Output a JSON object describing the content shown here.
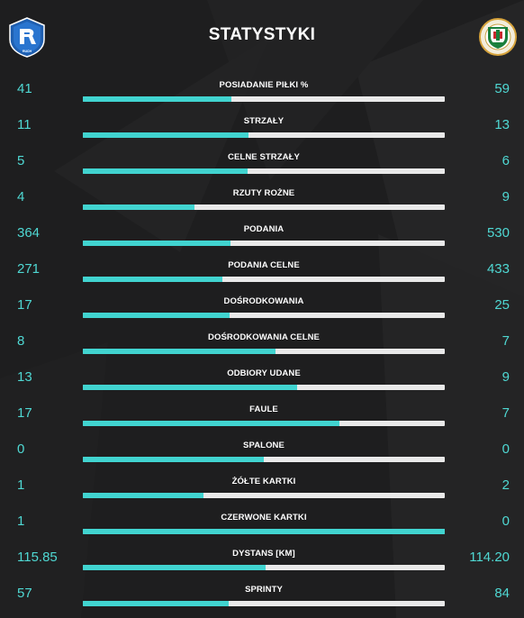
{
  "header": {
    "title": "STATYSTYKI",
    "home_crest_icon": "ruch-chorzow-crest-icon",
    "away_crest_icon": "zaglebie-lubin-crest-icon",
    "home_crest_text": "RUCH",
    "home_crest_subtext": "CHORZÓW"
  },
  "colors": {
    "background": "#1e1e1f",
    "accent": "#41d4d0",
    "value_text": "#4fd8d3",
    "bar_track": "#e9e9e9",
    "label_text": "#ffffff"
  },
  "stats": [
    {
      "label": "POSIADANIE PIŁKI %",
      "home": "41",
      "away": "59",
      "home_share": 0.41
    },
    {
      "label": "STRZAŁY",
      "home": "11",
      "away": "13",
      "home_share": 0.458
    },
    {
      "label": "CELNE STRZAŁY",
      "home": "5",
      "away": "6",
      "home_share": 0.455
    },
    {
      "label": "RZUTY ROŻNE",
      "home": "4",
      "away": "9",
      "home_share": 0.308
    },
    {
      "label": "PODANIA",
      "home": "364",
      "away": "530",
      "home_share": 0.407
    },
    {
      "label": "PODANIA CELNE",
      "home": "271",
      "away": "433",
      "home_share": 0.385
    },
    {
      "label": "DOŚRODKOWANIA",
      "home": "17",
      "away": "25",
      "home_share": 0.405
    },
    {
      "label": "DOŚRODKOWANIA CELNE",
      "home": "8",
      "away": "7",
      "home_share": 0.533
    },
    {
      "label": "ODBIORY UDANE",
      "home": "13",
      "away": "9",
      "home_share": 0.591
    },
    {
      "label": "FAULE",
      "home": "17",
      "away": "7",
      "home_share": 0.708
    },
    {
      "label": "SPALONE",
      "home": "0",
      "away": "0",
      "home_share": 0.5
    },
    {
      "label": "ŻÓŁTE KARTKI",
      "home": "1",
      "away": "2",
      "home_share": 0.333
    },
    {
      "label": "CZERWONE KARTKI",
      "home": "1",
      "away": "0",
      "home_share": 1.0
    },
    {
      "label": "DYSTANS [KM]",
      "home": "115.85",
      "away": "114.20",
      "home_share": 0.504
    },
    {
      "label": "SPRINTY",
      "home": "57",
      "away": "84",
      "home_share": 0.404
    }
  ]
}
